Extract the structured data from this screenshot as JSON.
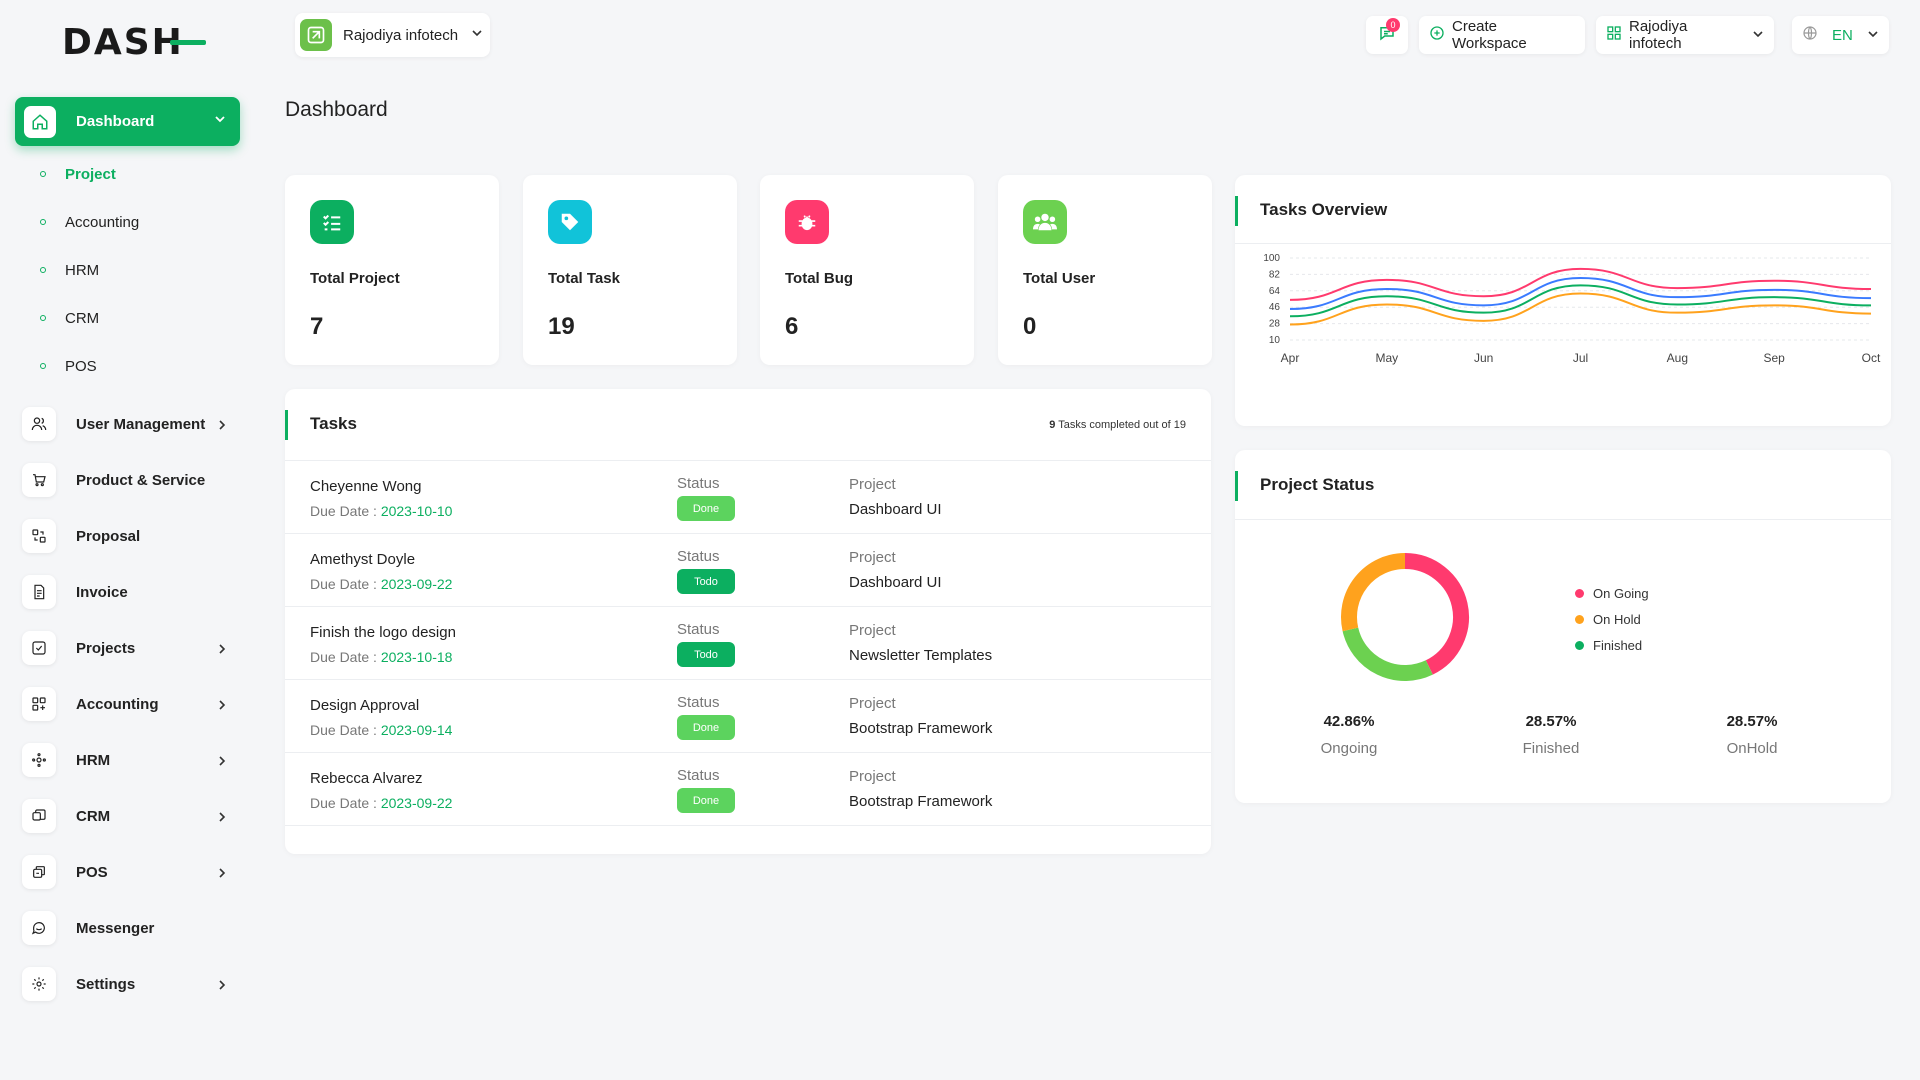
{
  "brand": {
    "logo_text": "DASH"
  },
  "sidebar": {
    "active": {
      "label": "Dashboard"
    },
    "sub_items": [
      {
        "label": "Project",
        "active": true
      },
      {
        "label": "Accounting",
        "active": false
      },
      {
        "label": "HRM",
        "active": false
      },
      {
        "label": "CRM",
        "active": false
      },
      {
        "label": "POS",
        "active": false
      }
    ],
    "items": [
      {
        "label": "User Management",
        "icon": "users-icon",
        "chevron": true
      },
      {
        "label": "Product & Service",
        "icon": "cart-icon",
        "chevron": false
      },
      {
        "label": "Proposal",
        "icon": "proposal-icon",
        "chevron": false
      },
      {
        "label": "Invoice",
        "icon": "invoice-icon",
        "chevron": false
      },
      {
        "label": "Projects",
        "icon": "projects-icon",
        "chevron": true
      },
      {
        "label": "Accounting",
        "icon": "accounting-icon",
        "chevron": true
      },
      {
        "label": "HRM",
        "icon": "hrm-icon",
        "chevron": true
      },
      {
        "label": "CRM",
        "icon": "crm-icon",
        "chevron": true
      },
      {
        "label": "POS",
        "icon": "pos-icon",
        "chevron": true
      },
      {
        "label": "Messenger",
        "icon": "messenger-icon",
        "chevron": false
      },
      {
        "label": "Settings",
        "icon": "settings-icon",
        "chevron": true
      }
    ]
  },
  "header": {
    "workspace": "Rajodiya infotech",
    "messages_count": "0",
    "create_workspace": "Create Workspace",
    "user": "Rajodiya infotech",
    "language": "EN"
  },
  "page_title": "Dashboard",
  "stats": [
    {
      "label": "Total Project",
      "value": "7",
      "color": "#0caf60",
      "icon": "list-check-icon"
    },
    {
      "label": "Total Task",
      "value": "19",
      "color": "#11c3d9",
      "icon": "tag-icon"
    },
    {
      "label": "Total Bug",
      "value": "6",
      "color": "#ff3a6e",
      "icon": "bug-icon"
    },
    {
      "label": "Total User",
      "value": "0",
      "color": "#6cd150",
      "icon": "users-group-icon"
    }
  ],
  "tasks": {
    "title": "Tasks",
    "summary_count": "9",
    "summary_text": " Tasks completed out of 19",
    "status_label": "Status",
    "project_label": "Project",
    "due_label": "Due Date : ",
    "rows": [
      {
        "name": "Cheyenne Wong",
        "due": "2023-10-10",
        "status": "Done",
        "project": "Dashboard UI"
      },
      {
        "name": "Amethyst Doyle",
        "due": "2023-09-22",
        "status": "Todo",
        "project": "Dashboard UI"
      },
      {
        "name": "Finish the logo design",
        "due": "2023-10-18",
        "status": "Todo",
        "project": "Newsletter Templates"
      },
      {
        "name": "Design Approval",
        "due": "2023-09-14",
        "status": "Done",
        "project": "Bootstrap Framework"
      },
      {
        "name": "Rebecca Alvarez",
        "due": "2023-09-22",
        "status": "Done",
        "project": "Bootstrap Framework"
      }
    ]
  },
  "overview": {
    "title": "Tasks Overview"
  },
  "project_status": {
    "title": "Project Status",
    "legend": [
      {
        "label": "On Going",
        "color": "#ff3a6e"
      },
      {
        "label": "On Hold",
        "color": "#ffa21d"
      },
      {
        "label": "Finished",
        "color": "#0caf60"
      }
    ],
    "percentages": [
      {
        "value": "42.86%",
        "label": "Ongoing"
      },
      {
        "value": "28.57%",
        "label": "Finished"
      },
      {
        "value": "28.57%",
        "label": "OnHold"
      }
    ]
  },
  "chart_data": [
    {
      "type": "line",
      "x": [
        "Apr",
        "May",
        "Jun",
        "Jul",
        "Aug",
        "Sep",
        "Oct"
      ],
      "y_ticks": [
        10,
        28,
        46,
        64,
        82,
        100
      ],
      "ylim": [
        10,
        100
      ],
      "grid": true,
      "series": [
        {
          "color": "#ff3a6e",
          "values": [
            54,
            76,
            58,
            88,
            67,
            75,
            66
          ]
        },
        {
          "color": "#3a7bff",
          "values": [
            44,
            66,
            48,
            78,
            57,
            65,
            56
          ]
        },
        {
          "color": "#0caf60",
          "values": [
            36,
            58,
            40,
            70,
            49,
            57,
            48
          ]
        },
        {
          "color": "#ffa21d",
          "values": [
            27,
            49,
            31,
            61,
            40,
            48,
            39
          ]
        }
      ]
    },
    {
      "type": "pie",
      "slices": [
        {
          "label": "On Going",
          "value": 42.86,
          "color": "#ff3a6e"
        },
        {
          "label": "Finished",
          "value": 28.57,
          "color": "#6cd150"
        },
        {
          "label": "On Hold",
          "value": 28.57,
          "color": "#ffa21d"
        }
      ]
    }
  ]
}
